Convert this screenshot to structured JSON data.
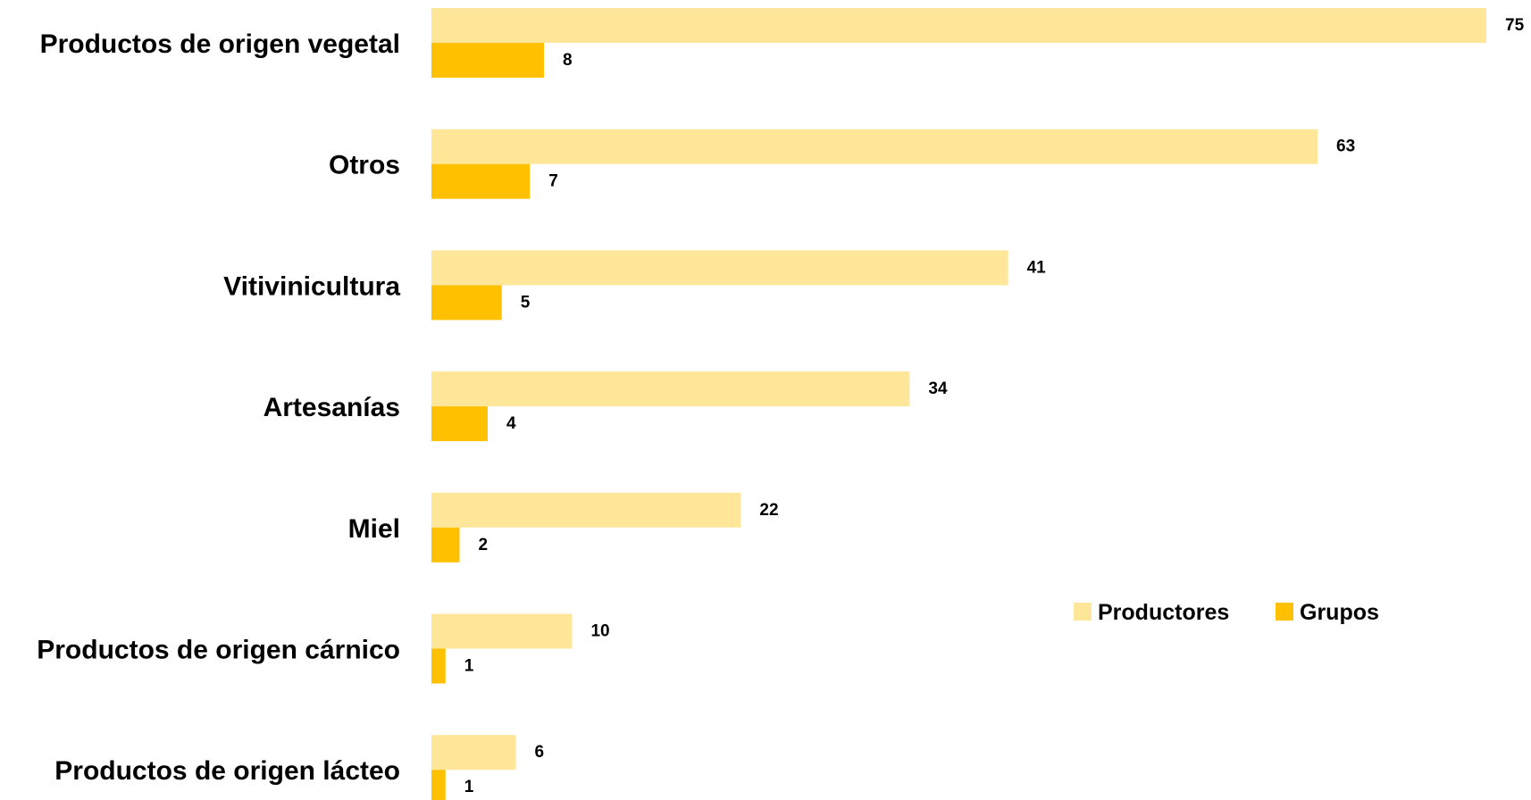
{
  "chart_data": {
    "type": "bar",
    "orientation": "horizontal",
    "categories": [
      "Productos de origen vegetal",
      "Otros",
      "Vitivinicultura",
      "Artesanías",
      "Miel",
      "Productos de origen cárnico",
      "Productos de origen lácteo"
    ],
    "series": [
      {
        "name": "Productores",
        "color": "#ffe699",
        "values": [
          75,
          63,
          41,
          34,
          22,
          10,
          6
        ]
      },
      {
        "name": "Grupos",
        "color": "#ffc000",
        "values": [
          8,
          7,
          5,
          4,
          2,
          1,
          1
        ]
      }
    ],
    "xlim": [
      0,
      75
    ],
    "grid": false,
    "data_labels": true,
    "legend_position": "right"
  }
}
